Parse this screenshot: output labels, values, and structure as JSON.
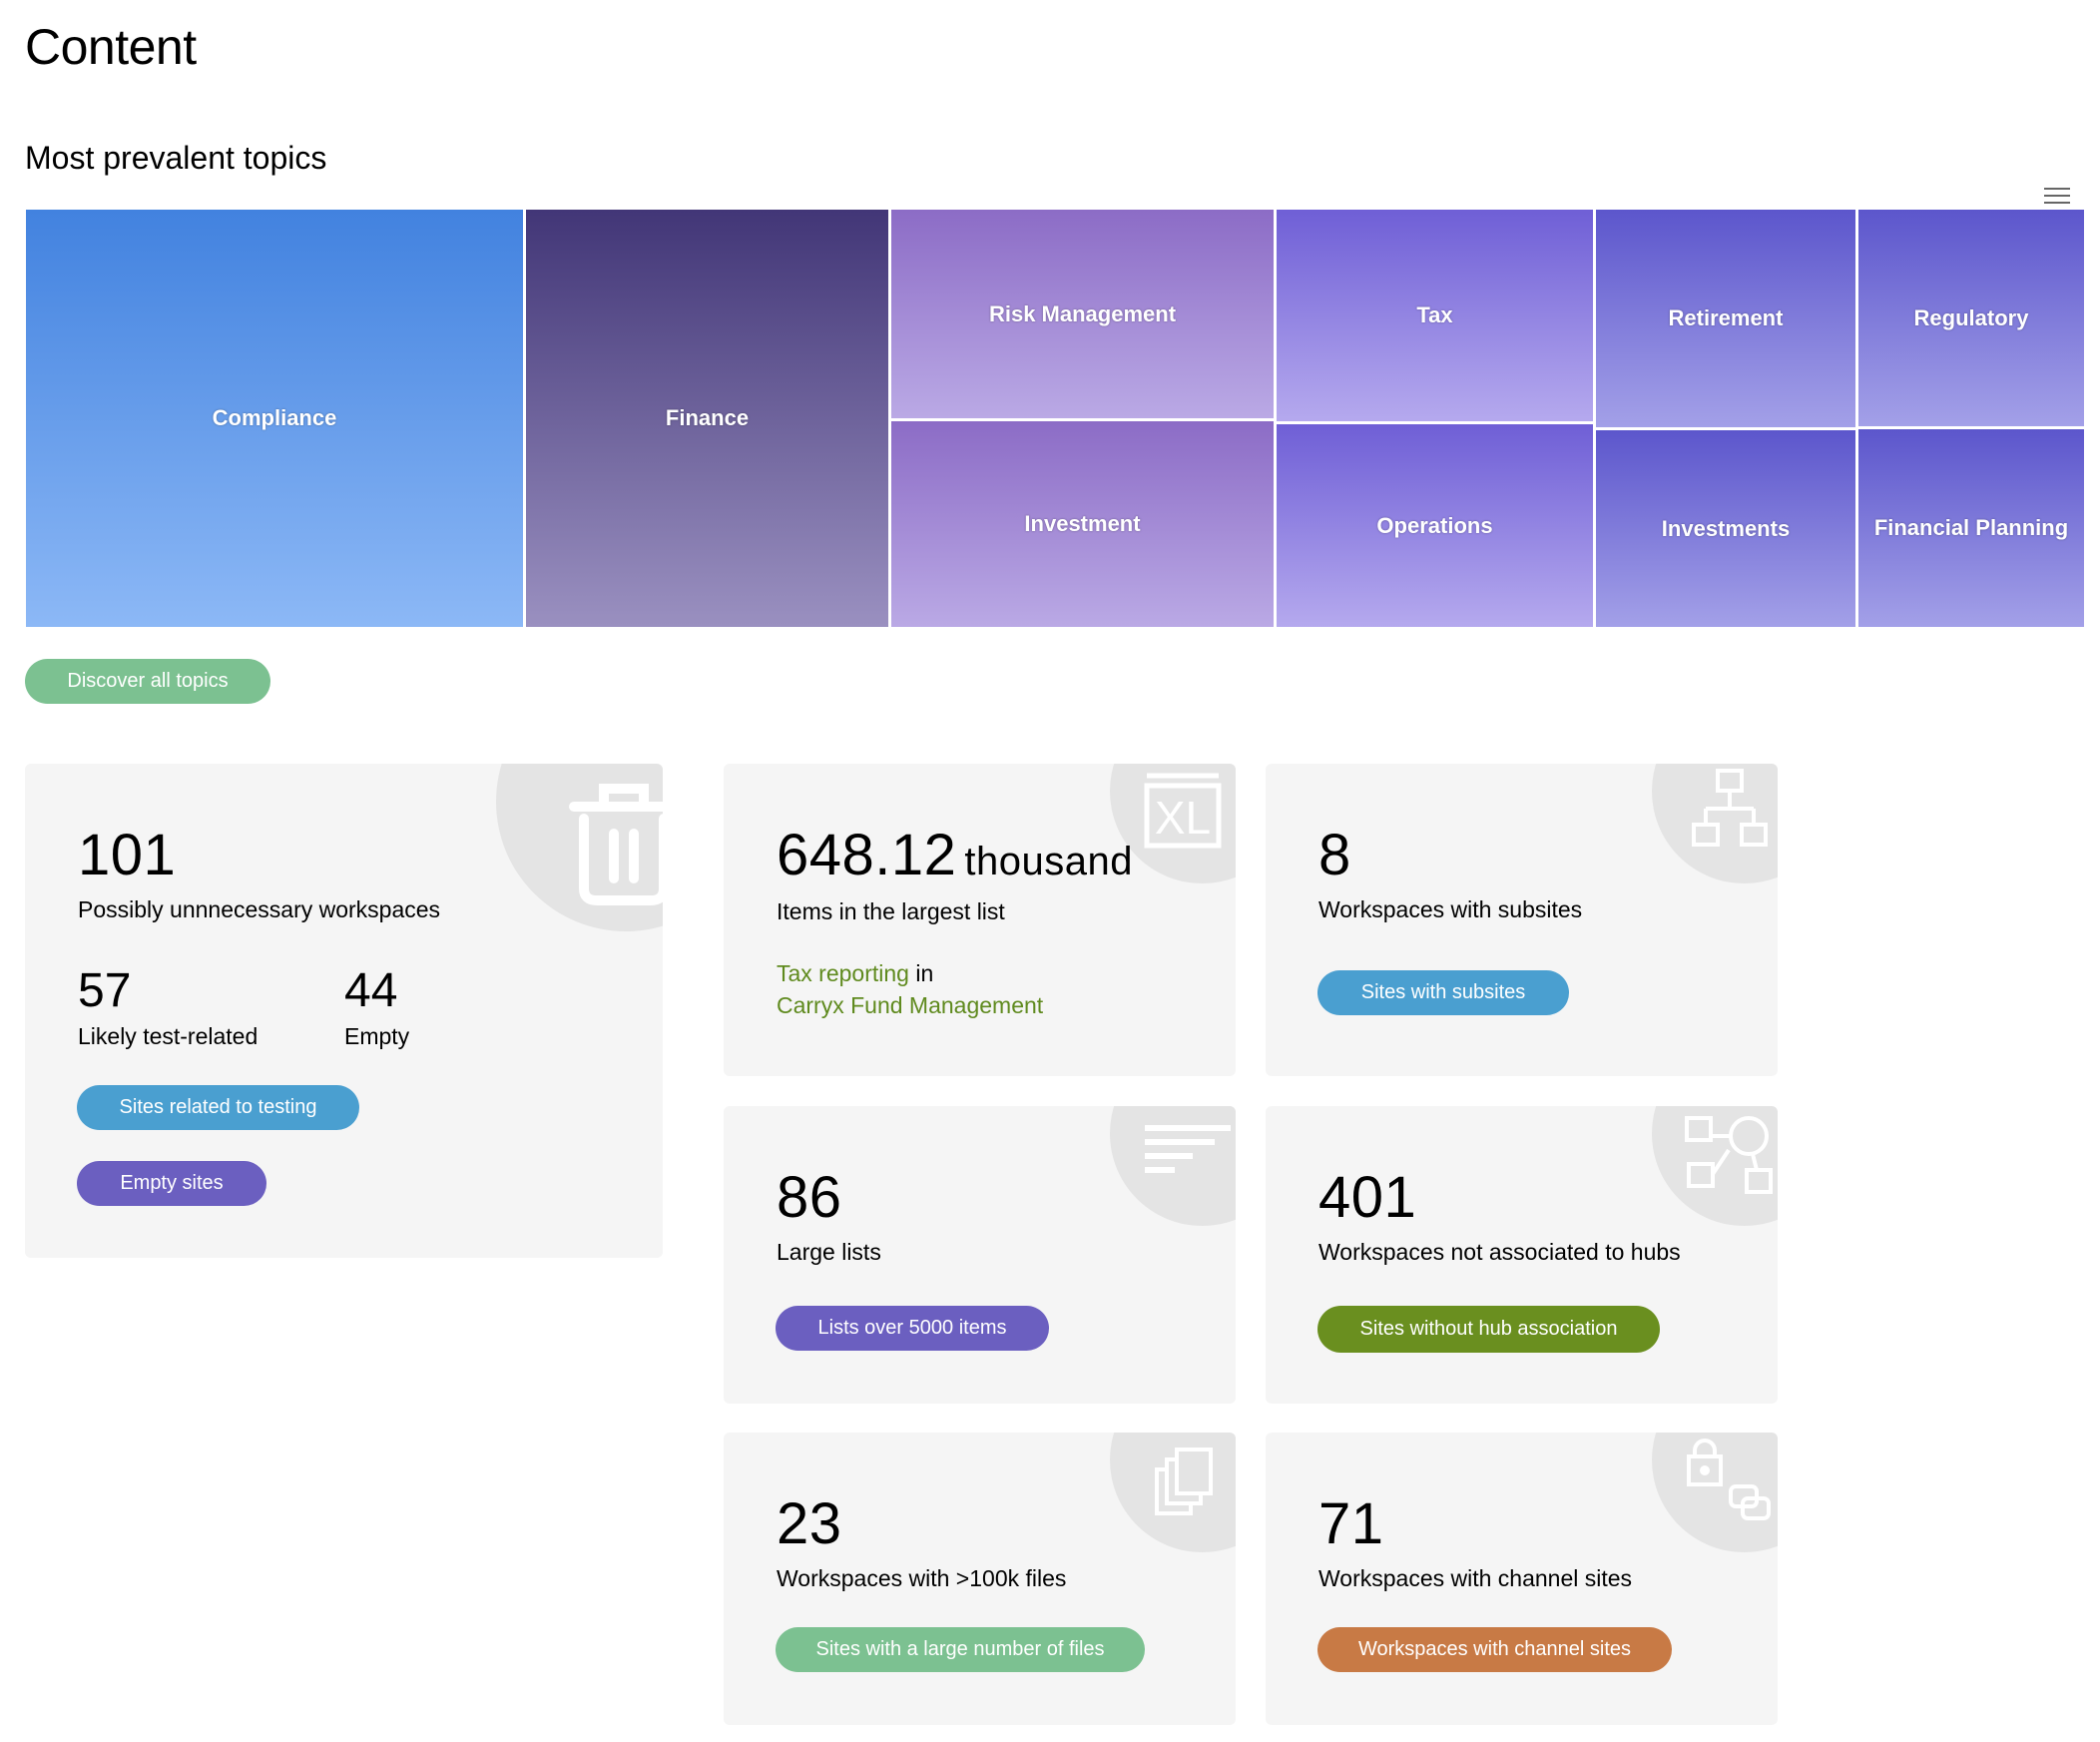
{
  "page": {
    "title": "Content"
  },
  "topics": {
    "title": "Most prevalent topics",
    "menu_icon": "hamburger-menu-icon",
    "tiles": [
      {
        "label": "Compliance",
        "color": "#4a86e0"
      },
      {
        "label": "Finance",
        "color": "#4b3f80"
      },
      {
        "label": "Risk Management",
        "color": "#9a7fd0"
      },
      {
        "label": "Investment",
        "color": "#9a7fd0"
      },
      {
        "label": "Tax",
        "color": "#7b6ad8"
      },
      {
        "label": "Operations",
        "color": "#7b6ad8"
      },
      {
        "label": "Retirement",
        "color": "#6a60cf"
      },
      {
        "label": "Investments",
        "color": "#6a60cf"
      },
      {
        "label": "Regulatory",
        "color": "#6a60cf"
      },
      {
        "label": "Financial Planning",
        "color": "#6a60cf"
      }
    ],
    "discover_button": "Discover all topics"
  },
  "cards": {
    "unnecessary": {
      "value": "101",
      "label": "Possibly unnnecessary workspaces",
      "test_value": "57",
      "test_label": "Likely test-related",
      "empty_value": "44",
      "empty_label": "Empty",
      "button_testing": "Sites related to testing",
      "button_empty": "Empty sites",
      "icon": "trash-icon"
    },
    "largest_list": {
      "value": "648.12",
      "unit": "thousand",
      "label": "Items in the largest list",
      "list_link": "Tax reporting",
      "in_text": "in",
      "site_link": "Carryx Fund Management",
      "icon": "excel-file-icon"
    },
    "subsites": {
      "value": "8",
      "label": "Workspaces with subsites",
      "button": "Sites with subsites",
      "icon": "hierarchy-icon"
    },
    "large_lists": {
      "value": "86",
      "label": "Large lists",
      "button": "Lists over 5000 items",
      "icon": "list-lines-icon"
    },
    "hubs": {
      "value": "401",
      "label": "Workspaces not associated to hubs",
      "button": "Sites without hub association",
      "icon": "hub-shapes-icon"
    },
    "files": {
      "value": "23",
      "label": "Workspaces with >100k files",
      "button": "Sites with a large number of files",
      "icon": "stacked-files-icon"
    },
    "channels": {
      "value": "71",
      "label": "Workspaces with channel sites",
      "button": "Workspaces with channel sites",
      "icon": "lock-channels-icon"
    }
  },
  "colors": {
    "green_button": "#7cc191",
    "blue_button": "#4a9fd0",
    "purple_button": "#6b5fc0",
    "olive_button": "#6a8f1f",
    "orange_button": "#c87a45",
    "link_green": "#5f8a1e"
  }
}
